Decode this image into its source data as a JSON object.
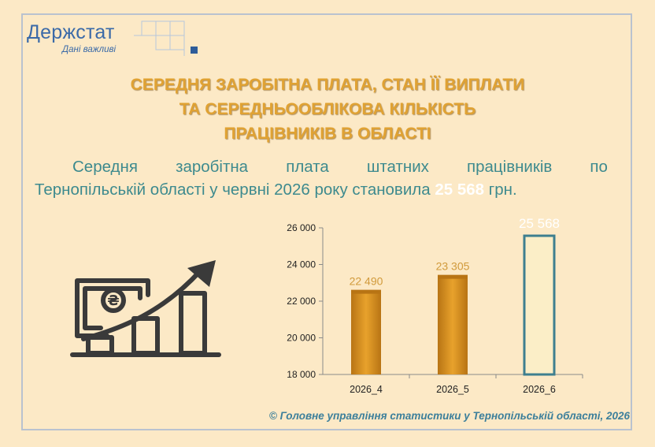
{
  "logo": {
    "name": "Держстат",
    "tagline": "Дані важливі",
    "color": "#3b6aa8"
  },
  "title": {
    "lines": [
      "СЕРЕДНЯ ЗАРОБІТНА ПЛАТА, СТАН ЇЇ ВИПЛАТИ",
      "ТА СЕРЕДНЬООБЛІКОВА КІЛЬКІСТЬ",
      "ПРАЦІВНИКІВ В ОБЛАСТІ"
    ]
  },
  "paragraph": {
    "line1_words": [
      "Середня",
      "заробітна",
      "плата",
      "штатних",
      "працівників",
      "по"
    ],
    "line2_prefix": "Тернопільській області у червні 2026 року становила",
    "highlight": "25 568",
    "line2_suffix": "грн."
  },
  "chart_data": {
    "type": "bar",
    "categories": [
      "2026_4",
      "2026_5",
      "2026_6"
    ],
    "values": [
      22490,
      23305,
      25568
    ],
    "data_labels": [
      "22 490",
      "23 305",
      "25 568"
    ],
    "ylim": [
      18000,
      26000
    ],
    "yticks": [
      18000,
      20000,
      22000,
      24000,
      26000
    ],
    "ytick_labels": [
      "18 000",
      "20 000",
      "22 000",
      "24 000",
      "26 000"
    ],
    "grid": false,
    "colors": {
      "bar": "#e8a22c",
      "bar_dark": "#b87414",
      "highlight_bar": "#fbeec7",
      "highlight_border": "#3e7f8f",
      "label": "#d19a3b",
      "highlight_label": "#ffffff"
    }
  },
  "icon": {
    "name": "hryvnia-growth-icon",
    "symbol": "₴"
  },
  "footer": {
    "text": "© Головне управління статистики у Тернопільській області, 2026"
  },
  "colors": {
    "background": "#fce9c6",
    "title": "#e0a233",
    "text": "#3d8a8e",
    "footer": "#3c7f9b"
  }
}
